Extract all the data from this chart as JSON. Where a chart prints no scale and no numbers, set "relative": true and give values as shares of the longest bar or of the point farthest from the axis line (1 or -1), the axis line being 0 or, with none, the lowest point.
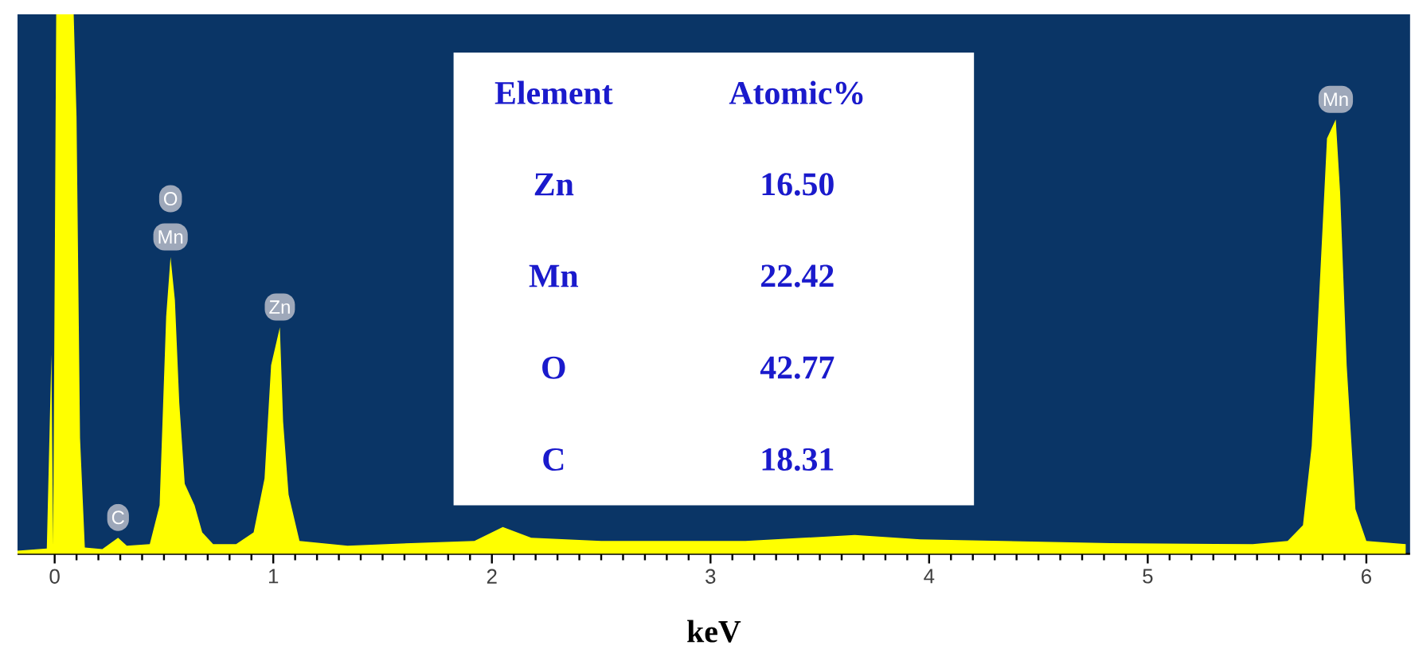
{
  "chart_data": {
    "type": "area",
    "xlabel": "keV",
    "relative": true,
    "color": "#ffff00",
    "tick_labels": "x",
    "xlim": [
      -0.17,
      6.2
    ],
    "xticks": [
      0,
      1,
      2,
      3,
      4,
      5,
      6
    ],
    "x": [
      -0.17,
      -0.036,
      -0.015,
      -0.007,
      0.007,
      0.087,
      0.1,
      0.116,
      0.138,
      0.218,
      0.29,
      0.33,
      0.435,
      0.48,
      0.51,
      0.53,
      0.55,
      0.57,
      0.595,
      0.64,
      0.675,
      0.725,
      0.83,
      0.91,
      0.96,
      0.99,
      1.03,
      1.045,
      1.07,
      1.12,
      1.34,
      1.63,
      1.92,
      2.05,
      2.18,
      2.5,
      3.16,
      3.66,
      3.96,
      4.83,
      5.48,
      5.64,
      5.71,
      5.75,
      5.79,
      5.82,
      5.86,
      5.88,
      5.91,
      5.95,
      6.0,
      6.18
    ],
    "values": [
      0.006,
      0.01,
      0.37,
      0.015,
      1,
      1,
      0.81,
      0.215,
      0.012,
      0.009,
      0.03,
      0.015,
      0.018,
      0.09,
      0.44,
      0.55,
      0.47,
      0.28,
      0.13,
      0.09,
      0.04,
      0.018,
      0.018,
      0.04,
      0.14,
      0.35,
      0.42,
      0.245,
      0.11,
      0.024,
      0.015,
      0.02,
      0.024,
      0.05,
      0.03,
      0.024,
      0.024,
      0.035,
      0.027,
      0.02,
      0.018,
      0.024,
      0.053,
      0.2,
      0.525,
      0.77,
      0.805,
      0.67,
      0.35,
      0.083,
      0.024,
      0.018
    ],
    "annotations": [
      "Element",
      "Atomic%",
      "Zn",
      "16.50",
      "Mn",
      "22.42",
      "O",
      "42.77",
      "C",
      "18.31",
      {
        "text": "C",
        "x": 0.29,
        "y": 0.03
      },
      {
        "text": "Mn",
        "x": 0.53,
        "y": 0.55
      },
      {
        "text": "O",
        "x": 0.53,
        "y": 0.55
      },
      {
        "text": "Zn",
        "x": 1.03,
        "y": 0.42
      },
      {
        "text": "Mn",
        "x": 5.86,
        "y": 0.805
      }
    ]
  }
}
